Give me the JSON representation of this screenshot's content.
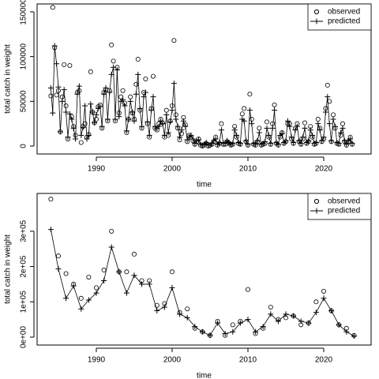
{
  "chart_data": [
    {
      "type": "line",
      "xlabel": "time",
      "ylabel": "total catch in weight",
      "xlim": [
        1982.19,
        2026.25
      ],
      "ylim": [
        -8800,
        158800
      ],
      "xticks": [
        1990,
        2000,
        2010,
        2020
      ],
      "yticks": [
        0,
        50000,
        100000,
        150000
      ],
      "legend": "topright",
      "x": [
        1984,
        1984.25,
        1984.5,
        1984.75,
        1985,
        1985.25,
        1985.5,
        1985.75,
        1986,
        1986.25,
        1986.5,
        1986.75,
        1987,
        1987.25,
        1987.5,
        1987.75,
        1988,
        1988.25,
        1988.5,
        1988.75,
        1989,
        1989.25,
        1989.5,
        1989.75,
        1990,
        1990.25,
        1990.5,
        1990.75,
        1991,
        1991.25,
        1991.5,
        1991.75,
        1992,
        1992.25,
        1992.5,
        1992.75,
        1993,
        1993.25,
        1993.5,
        1993.75,
        1994,
        1994.25,
        1994.5,
        1994.75,
        1995,
        1995.25,
        1995.5,
        1995.75,
        1996,
        1996.25,
        1996.5,
        1996.75,
        1997,
        1997.25,
        1997.5,
        1997.75,
        1998,
        1998.25,
        1998.5,
        1998.75,
        1999,
        1999.25,
        1999.5,
        1999.75,
        2000,
        2000.25,
        2000.5,
        2000.75,
        2001,
        2001.25,
        2001.5,
        2001.75,
        2002,
        2002.25,
        2002.5,
        2002.75,
        2003,
        2003.25,
        2003.5,
        2003.75,
        2004,
        2004.25,
        2004.5,
        2004.75,
        2005,
        2005.25,
        2005.5,
        2005.75,
        2006,
        2006.25,
        2006.5,
        2006.75,
        2007,
        2007.25,
        2007.5,
        2007.75,
        2008,
        2008.25,
        2008.5,
        2008.75,
        2009,
        2009.25,
        2009.5,
        2009.75,
        2010,
        2010.25,
        2010.5,
        2010.75,
        2011,
        2011.25,
        2011.5,
        2011.75,
        2012,
        2012.25,
        2012.5,
        2012.75,
        2013,
        2013.25,
        2013.5,
        2013.75,
        2014,
        2014.25,
        2014.5,
        2014.75,
        2015,
        2015.25,
        2015.5,
        2015.75,
        2016,
        2016.25,
        2016.5,
        2016.75,
        2017,
        2017.25,
        2017.5,
        2017.75,
        2018,
        2018.25,
        2018.5,
        2018.75,
        2019,
        2019.25,
        2019.5,
        2019.75,
        2020,
        2020.25,
        2020.5,
        2020.75,
        2021,
        2021.25,
        2021.5,
        2021.75,
        2022,
        2022.25,
        2022.5,
        2022.75,
        2023,
        2023.25,
        2023.5,
        2023.75
      ],
      "series": [
        {
          "name": "observed",
          "color": "#000000",
          "marker": "circle",
          "line": false,
          "values": [
            56000,
            155000,
            110000,
            57000,
            62000,
            16000,
            55000,
            91000,
            45000,
            8000,
            90000,
            33000,
            22000,
            12000,
            60000,
            62000,
            4000,
            22000,
            25000,
            10000,
            13000,
            83000,
            38000,
            26000,
            30000,
            44000,
            46000,
            20000,
            60000,
            63000,
            28000,
            62000,
            113000,
            95000,
            28000,
            88000,
            37000,
            55000,
            62000,
            48000,
            15000,
            30000,
            55000,
            37000,
            30000,
            69000,
            97000,
            40000,
            20000,
            60000,
            75000,
            25000,
            10000,
            42000,
            78000,
            20000,
            18000,
            25000,
            30000,
            26000,
            10000,
            40000,
            12000,
            28000,
            45000,
            118000,
            35000,
            20000,
            7000,
            14000,
            32000,
            24000,
            5000,
            12000,
            10000,
            6000,
            2000,
            5000,
            8000,
            1000,
            0,
            1000,
            3000,
            0,
            1000,
            2000,
            5000,
            10000,
            1000,
            3000,
            25000,
            2000,
            2000,
            5000,
            3000,
            1000,
            2000,
            22000,
            10000,
            3000,
            2000,
            36000,
            42000,
            5000,
            1000,
            58000,
            30000,
            2000,
            1000,
            5000,
            20000,
            1000,
            2000,
            3000,
            27000,
            10000,
            2000,
            25000,
            46000,
            3000,
            1000,
            10000,
            15000,
            3000,
            5000,
            25000,
            25000,
            8000,
            3000,
            20000,
            25000,
            5000,
            2000,
            8000,
            26000,
            3000,
            5000,
            22000,
            10000,
            2000,
            3000,
            30000,
            20000,
            5000,
            8000,
            42000,
            68000,
            50000,
            5000,
            35000,
            20000,
            3000,
            2000,
            12000,
            25000,
            5000,
            1000,
            5000,
            10000,
            2000
          ]
        },
        {
          "name": "predicted",
          "color": "#000000",
          "marker": "plus",
          "line": true,
          "values": [
            65000,
            37000,
            112000,
            92000,
            66000,
            16000,
            50000,
            63000,
            38000,
            10000,
            36000,
            30000,
            20000,
            8000,
            58000,
            67000,
            12000,
            21000,
            45000,
            8000,
            12000,
            47000,
            38000,
            26000,
            35000,
            42000,
            44000,
            22000,
            58000,
            65000,
            30000,
            60000,
            80000,
            88000,
            30000,
            85000,
            33000,
            50000,
            52000,
            45000,
            17000,
            30000,
            50000,
            38000,
            28000,
            58000,
            80000,
            42000,
            22000,
            55000,
            60000,
            27000,
            12000,
            40000,
            55000,
            22000,
            20000,
            22000,
            28000,
            25000,
            12000,
            35000,
            15000,
            27000,
            40000,
            70000,
            30000,
            22000,
            10000,
            18000,
            28000,
            22000,
            7000,
            10000,
            12000,
            8000,
            3000,
            6000,
            7000,
            2000,
            1000,
            2000,
            4000,
            1000,
            1000,
            3000,
            6000,
            8000,
            2000,
            4000,
            18000,
            3000,
            3000,
            6000,
            4000,
            2000,
            3000,
            18000,
            12000,
            4000,
            3000,
            30000,
            28000,
            6000,
            2000,
            40000,
            25000,
            3000,
            2000,
            6000,
            15000,
            2000,
            3000,
            5000,
            20000,
            12000,
            3000,
            20000,
            40000,
            4000,
            2000,
            12000,
            14000,
            4000,
            6000,
            28000,
            22000,
            10000,
            4000,
            18000,
            22000,
            6000,
            3000,
            10000,
            20000,
            4000,
            6000,
            18000,
            12000,
            3000,
            4000,
            25000,
            18000,
            6000,
            10000,
            38000,
            55000,
            25000,
            6000,
            30000,
            22000,
            4000,
            3000,
            15000,
            20000,
            6000,
            2000,
            6000,
            8000,
            3000
          ]
        }
      ]
    },
    {
      "type": "line",
      "xlabel": "time",
      "ylabel": "total catch in weight",
      "xlim": [
        1982.19,
        2026.25
      ],
      "ylim": [
        -22400,
        407000
      ],
      "xticks": [
        1990,
        2000,
        2010,
        2020
      ],
      "yticks": [
        {
          "value": 0,
          "label": "0e+00"
        },
        {
          "value": 100000,
          "label": "1e+05"
        },
        {
          "value": 200000,
          "label": "2e+05"
        },
        {
          "value": 300000,
          "label": "3e+05"
        }
      ],
      "legend": "topright",
      "x": [
        1984,
        1985,
        1986,
        1987,
        1988,
        1989,
        1990,
        1991,
        1992,
        1993,
        1994,
        1995,
        1996,
        1997,
        1998,
        1999,
        2000,
        2001,
        2002,
        2003,
        2004,
        2005,
        2006,
        2007,
        2008,
        2009,
        2010,
        2011,
        2012,
        2013,
        2014,
        2015,
        2016,
        2017,
        2018,
        2019,
        2020,
        2021,
        2022,
        2023,
        2024
      ],
      "series": [
        {
          "name": "observed",
          "color": "#000000",
          "marker": "circle",
          "line": false,
          "values": [
            391000,
            230000,
            180000,
            150000,
            110000,
            170000,
            140000,
            190000,
            300000,
            185000,
            185000,
            235000,
            160000,
            160000,
            90000,
            95000,
            185000,
            70000,
            80000,
            25000,
            15000,
            5000,
            45000,
            5000,
            35000,
            45000,
            135000,
            10000,
            25000,
            85000,
            50000,
            55000,
            60000,
            35000,
            40000,
            100000,
            130000,
            75000,
            35000,
            25000,
            5000
          ]
        },
        {
          "name": "predicted",
          "color": "#000000",
          "marker": "plus",
          "line": true,
          "values": [
            305000,
            193000,
            110000,
            145000,
            80000,
            105000,
            125000,
            160000,
            255000,
            185000,
            125000,
            175000,
            150000,
            150000,
            75000,
            85000,
            140000,
            65000,
            55000,
            30000,
            15000,
            5000,
            40000,
            10000,
            15000,
            40000,
            50000,
            15000,
            30000,
            65000,
            45000,
            65000,
            60000,
            45000,
            40000,
            70000,
            110000,
            75000,
            35000,
            15000,
            3000
          ]
        }
      ]
    }
  ]
}
